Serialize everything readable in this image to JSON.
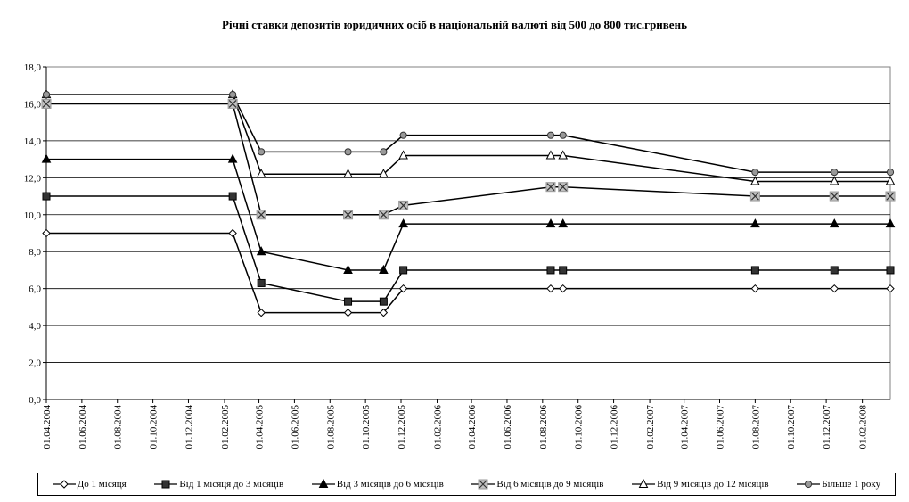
{
  "chart_data": {
    "type": "line",
    "title": "Річні ставки депозитів юридичних осіб в національній валюті від 500 до 800 тис.гривень",
    "xlabel": "",
    "ylabel": "",
    "ylim": [
      0,
      18
    ],
    "yticks": [
      "0,0",
      "2,0",
      "4,0",
      "6,0",
      "8,0",
      "10,0",
      "12,0",
      "14,0",
      "16,0",
      "18,0"
    ],
    "xlim": [
      "2004-04-01",
      "2008-03-20"
    ],
    "xticks": [
      "01.04.2004",
      "01.06.2004",
      "01.08.2004",
      "01.10.2004",
      "01.12.2004",
      "01.02.2005",
      "01.04.2005",
      "01.06.2005",
      "01.08.2005",
      "01.10.2005",
      "01.12.2005",
      "01.02.2006",
      "01.04.2006",
      "01.06.2006",
      "01.08.2006",
      "01.10.2006",
      "01.12.2006",
      "01.02.2007",
      "01.04.2007",
      "01.06.2007",
      "01.08.2007",
      "01.10.2007",
      "01.12.2007",
      "01.02.2008"
    ],
    "x": [
      "2004-04-01",
      "2005-02-15",
      "2005-04-05",
      "2005-09-01",
      "2005-11-01",
      "2005-12-05",
      "2006-08-15",
      "2006-09-05",
      "2007-08-01",
      "2007-12-15",
      "2008-03-20"
    ],
    "grid": {
      "x": false,
      "y": true
    },
    "legend_position": "bottom",
    "series": [
      {
        "name": "До 1 місяця",
        "marker": "diamond-open",
        "values": [
          9.0,
          9.0,
          4.7,
          4.7,
          4.7,
          6.0,
          6.0,
          6.0,
          6.0,
          6.0,
          6.0
        ]
      },
      {
        "name": "Від 1 місяця до 3 місяців",
        "marker": "square-filled",
        "values": [
          11.0,
          11.0,
          6.3,
          5.3,
          5.3,
          7.0,
          7.0,
          7.0,
          7.0,
          7.0,
          7.0
        ]
      },
      {
        "name": "Від 3 місяців до 6 місяців",
        "marker": "triangle-filled",
        "values": [
          13.0,
          13.0,
          8.0,
          7.0,
          7.0,
          9.5,
          9.5,
          9.5,
          9.5,
          9.5,
          9.5
        ]
      },
      {
        "name": "Від 6 місяців до 9 місяців",
        "marker": "x-square",
        "values": [
          16.0,
          16.0,
          10.0,
          10.0,
          10.0,
          10.5,
          11.5,
          11.5,
          11.0,
          11.0,
          11.0
        ]
      },
      {
        "name": "Від 9 місяців до 12 місяців",
        "marker": "triangle-open",
        "values": [
          16.5,
          16.5,
          12.2,
          12.2,
          12.2,
          13.2,
          13.2,
          13.2,
          11.8,
          11.8,
          11.8
        ]
      },
      {
        "name": "Більше 1 року",
        "marker": "circle-gray",
        "values": [
          16.5,
          16.5,
          13.4,
          13.4,
          13.4,
          14.3,
          14.3,
          14.3,
          12.3,
          12.3,
          12.3
        ]
      }
    ]
  }
}
